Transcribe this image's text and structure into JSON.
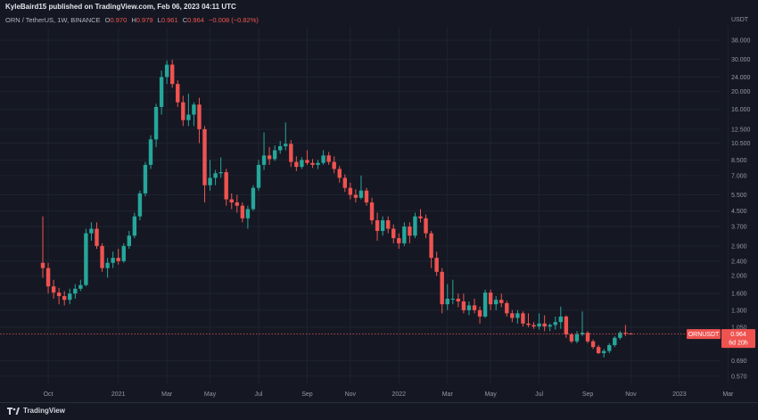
{
  "header": {
    "published_line": "KyleBaird15 published on TradingView.com, Feb 06, 2023 04:11 UTC"
  },
  "legend": {
    "symbol": "ORN / TetherUS, 1W, BINANCE",
    "o_key": "O",
    "o_val": "0.970",
    "h_key": "H",
    "h_val": "0.979",
    "l_key": "L",
    "l_val": "0.961",
    "c_key": "C",
    "c_val": "0.964",
    "change": "−0.008 (−0.82%)"
  },
  "footer": {
    "brand": "TradingView"
  },
  "colors": {
    "up": "#26a69a",
    "down": "#ef5350",
    "bg": "#151823",
    "grid": "#1f2330",
    "axis_text": "#9598a1"
  },
  "chart_data": {
    "type": "candlestick",
    "y_axis_unit": "USDT",
    "y_scale": "log",
    "y_ticks": [
      38.0,
      30.0,
      24.0,
      20.0,
      16.0,
      12.5,
      10.5,
      8.5,
      7.0,
      5.5,
      4.5,
      3.7,
      2.9,
      2.4,
      2.0,
      1.6,
      1.3,
      1.05,
      0.69,
      0.57
    ],
    "y_tick_labels": [
      "38.000",
      "30.000",
      "24.000",
      "20.000",
      "16.000",
      "12.500",
      "10.500",
      "8.500",
      "7.000",
      "5.500",
      "4.500",
      "3.700",
      "2.900",
      "2.400",
      "2.000",
      "1.600",
      "1.300",
      "1.050",
      "0.690",
      "0.570"
    ],
    "ylim": [
      0.52,
      45.0
    ],
    "x_ticks": [
      {
        "index": 1,
        "label": "Oct"
      },
      {
        "index": 14,
        "label": "2021"
      },
      {
        "index": 23,
        "label": "Mar"
      },
      {
        "index": 31,
        "label": "May"
      },
      {
        "index": 40,
        "label": "Jul"
      },
      {
        "index": 49,
        "label": "Sep"
      },
      {
        "index": 57,
        "label": "Nov"
      },
      {
        "index": 66,
        "label": "2022"
      },
      {
        "index": 75,
        "label": "Mar"
      },
      {
        "index": 83,
        "label": "May"
      },
      {
        "index": 92,
        "label": "Jul"
      },
      {
        "index": 101,
        "label": "Sep"
      },
      {
        "index": 109,
        "label": "Nov"
      },
      {
        "index": 118,
        "label": "2023"
      },
      {
        "index": 127,
        "label": "Mar"
      }
    ],
    "last_price": {
      "label": "ORNUSDT",
      "value": "0.964",
      "countdown": "6d 20h",
      "price": 0.964
    },
    "candles": [
      {
        "o": 2.35,
        "h": 4.2,
        "l": 1.95,
        "c": 2.2
      },
      {
        "o": 2.2,
        "h": 2.35,
        "l": 1.6,
        "c": 1.75
      },
      {
        "o": 1.75,
        "h": 1.9,
        "l": 1.5,
        "c": 1.62
      },
      {
        "o": 1.62,
        "h": 1.72,
        "l": 1.4,
        "c": 1.55
      },
      {
        "o": 1.55,
        "h": 1.65,
        "l": 1.38,
        "c": 1.48
      },
      {
        "o": 1.48,
        "h": 1.7,
        "l": 1.4,
        "c": 1.6
      },
      {
        "o": 1.6,
        "h": 1.8,
        "l": 1.5,
        "c": 1.7
      },
      {
        "o": 1.7,
        "h": 1.9,
        "l": 1.65,
        "c": 1.78
      },
      {
        "o": 1.78,
        "h": 3.6,
        "l": 1.75,
        "c": 3.4
      },
      {
        "o": 3.4,
        "h": 3.9,
        "l": 3.1,
        "c": 3.6
      },
      {
        "o": 3.6,
        "h": 3.9,
        "l": 2.8,
        "c": 2.9
      },
      {
        "o": 2.9,
        "h": 3.0,
        "l": 2.1,
        "c": 2.2
      },
      {
        "o": 2.2,
        "h": 2.5,
        "l": 1.95,
        "c": 2.35
      },
      {
        "o": 2.35,
        "h": 2.7,
        "l": 2.2,
        "c": 2.5
      },
      {
        "o": 2.5,
        "h": 2.8,
        "l": 2.3,
        "c": 2.4
      },
      {
        "o": 2.4,
        "h": 3.0,
        "l": 2.35,
        "c": 2.9
      },
      {
        "o": 2.9,
        "h": 3.5,
        "l": 2.8,
        "c": 3.3
      },
      {
        "o": 3.3,
        "h": 4.4,
        "l": 3.2,
        "c": 4.2
      },
      {
        "o": 4.2,
        "h": 5.8,
        "l": 4.0,
        "c": 5.6
      },
      {
        "o": 5.6,
        "h": 8.3,
        "l": 5.4,
        "c": 8.0
      },
      {
        "o": 8.0,
        "h": 11.6,
        "l": 7.6,
        "c": 11.0
      },
      {
        "o": 11.0,
        "h": 17.2,
        "l": 10.0,
        "c": 16.5
      },
      {
        "o": 16.5,
        "h": 26.0,
        "l": 15.0,
        "c": 24.0
      },
      {
        "o": 24.0,
        "h": 29.5,
        "l": 22.0,
        "c": 28.0
      },
      {
        "o": 28.0,
        "h": 29.8,
        "l": 21.0,
        "c": 22.0
      },
      {
        "o": 22.0,
        "h": 23.0,
        "l": 16.5,
        "c": 17.5
      },
      {
        "o": 17.5,
        "h": 19.0,
        "l": 13.0,
        "c": 14.0
      },
      {
        "o": 14.0,
        "h": 19.5,
        "l": 13.0,
        "c": 15.0
      },
      {
        "o": 15.0,
        "h": 17.5,
        "l": 13.0,
        "c": 17.0
      },
      {
        "o": 17.0,
        "h": 18.5,
        "l": 10.5,
        "c": 12.5
      },
      {
        "o": 12.5,
        "h": 13.0,
        "l": 5.0,
        "c": 6.2
      },
      {
        "o": 6.2,
        "h": 8.5,
        "l": 5.8,
        "c": 6.8
      },
      {
        "o": 6.8,
        "h": 7.5,
        "l": 6.2,
        "c": 7.2
      },
      {
        "o": 7.2,
        "h": 8.8,
        "l": 6.8,
        "c": 7.3
      },
      {
        "o": 7.3,
        "h": 7.6,
        "l": 4.8,
        "c": 5.2
      },
      {
        "o": 5.2,
        "h": 5.6,
        "l": 4.6,
        "c": 5.0
      },
      {
        "o": 5.0,
        "h": 5.5,
        "l": 4.4,
        "c": 4.8
      },
      {
        "o": 4.8,
        "h": 5.0,
        "l": 3.9,
        "c": 4.1
      },
      {
        "o": 4.1,
        "h": 4.8,
        "l": 3.6,
        "c": 4.6
      },
      {
        "o": 4.6,
        "h": 6.2,
        "l": 4.5,
        "c": 6.0
      },
      {
        "o": 6.0,
        "h": 8.5,
        "l": 5.8,
        "c": 8.0
      },
      {
        "o": 8.0,
        "h": 12.0,
        "l": 7.5,
        "c": 9.0
      },
      {
        "o": 9.0,
        "h": 10.0,
        "l": 8.0,
        "c": 8.6
      },
      {
        "o": 8.6,
        "h": 10.2,
        "l": 8.4,
        "c": 9.6
      },
      {
        "o": 9.6,
        "h": 10.8,
        "l": 9.2,
        "c": 10.1
      },
      {
        "o": 10.1,
        "h": 13.6,
        "l": 9.6,
        "c": 10.4
      },
      {
        "o": 10.4,
        "h": 10.9,
        "l": 7.8,
        "c": 8.3
      },
      {
        "o": 8.3,
        "h": 8.9,
        "l": 7.4,
        "c": 7.8
      },
      {
        "o": 7.8,
        "h": 8.8,
        "l": 7.6,
        "c": 8.5
      },
      {
        "o": 8.5,
        "h": 9.6,
        "l": 8.0,
        "c": 8.2
      },
      {
        "o": 8.2,
        "h": 8.6,
        "l": 7.7,
        "c": 8.0
      },
      {
        "o": 8.0,
        "h": 8.5,
        "l": 7.6,
        "c": 8.2
      },
      {
        "o": 8.2,
        "h": 9.6,
        "l": 8.0,
        "c": 9.0
      },
      {
        "o": 9.0,
        "h": 9.4,
        "l": 8.0,
        "c": 8.3
      },
      {
        "o": 8.3,
        "h": 8.9,
        "l": 7.2,
        "c": 7.6
      },
      {
        "o": 7.6,
        "h": 7.9,
        "l": 6.4,
        "c": 6.8
      },
      {
        "o": 6.8,
        "h": 7.1,
        "l": 5.7,
        "c": 6.0
      },
      {
        "o": 6.0,
        "h": 6.4,
        "l": 5.2,
        "c": 5.5
      },
      {
        "o": 5.5,
        "h": 5.9,
        "l": 5.0,
        "c": 5.3
      },
      {
        "o": 5.3,
        "h": 7.0,
        "l": 5.2,
        "c": 5.8
      },
      {
        "o": 5.8,
        "h": 6.0,
        "l": 4.8,
        "c": 5.0
      },
      {
        "o": 5.0,
        "h": 5.3,
        "l": 3.8,
        "c": 4.0
      },
      {
        "o": 4.0,
        "h": 4.4,
        "l": 3.1,
        "c": 3.5
      },
      {
        "o": 3.5,
        "h": 4.2,
        "l": 3.3,
        "c": 4.0
      },
      {
        "o": 4.0,
        "h": 4.2,
        "l": 3.4,
        "c": 3.6
      },
      {
        "o": 3.6,
        "h": 3.8,
        "l": 3.0,
        "c": 3.2
      },
      {
        "o": 3.2,
        "h": 3.4,
        "l": 2.8,
        "c": 3.0
      },
      {
        "o": 3.0,
        "h": 3.9,
        "l": 2.9,
        "c": 3.7
      },
      {
        "o": 3.7,
        "h": 3.9,
        "l": 3.0,
        "c": 3.3
      },
      {
        "o": 3.3,
        "h": 4.4,
        "l": 3.2,
        "c": 4.2
      },
      {
        "o": 4.2,
        "h": 4.6,
        "l": 3.9,
        "c": 4.1
      },
      {
        "o": 4.1,
        "h": 4.3,
        "l": 3.2,
        "c": 3.4
      },
      {
        "o": 3.4,
        "h": 3.5,
        "l": 2.2,
        "c": 2.5
      },
      {
        "o": 2.5,
        "h": 2.7,
        "l": 2.0,
        "c": 2.1
      },
      {
        "o": 2.1,
        "h": 2.2,
        "l": 1.25,
        "c": 1.4
      },
      {
        "o": 1.4,
        "h": 1.8,
        "l": 1.3,
        "c": 1.5
      },
      {
        "o": 1.5,
        "h": 1.9,
        "l": 1.4,
        "c": 1.5
      },
      {
        "o": 1.5,
        "h": 1.6,
        "l": 1.35,
        "c": 1.45
      },
      {
        "o": 1.45,
        "h": 1.6,
        "l": 1.25,
        "c": 1.3
      },
      {
        "o": 1.3,
        "h": 1.45,
        "l": 1.22,
        "c": 1.38
      },
      {
        "o": 1.38,
        "h": 1.5,
        "l": 1.25,
        "c": 1.3
      },
      {
        "o": 1.3,
        "h": 1.36,
        "l": 1.1,
        "c": 1.2
      },
      {
        "o": 1.2,
        "h": 1.68,
        "l": 1.18,
        "c": 1.62
      },
      {
        "o": 1.62,
        "h": 1.68,
        "l": 1.3,
        "c": 1.4
      },
      {
        "o": 1.4,
        "h": 1.55,
        "l": 1.3,
        "c": 1.48
      },
      {
        "o": 1.48,
        "h": 1.6,
        "l": 1.35,
        "c": 1.42
      },
      {
        "o": 1.42,
        "h": 1.46,
        "l": 1.2,
        "c": 1.25
      },
      {
        "o": 1.25,
        "h": 1.3,
        "l": 1.12,
        "c": 1.18
      },
      {
        "o": 1.18,
        "h": 1.3,
        "l": 1.1,
        "c": 1.25
      },
      {
        "o": 1.25,
        "h": 1.28,
        "l": 1.06,
        "c": 1.1
      },
      {
        "o": 1.1,
        "h": 1.25,
        "l": 1.05,
        "c": 1.08
      },
      {
        "o": 1.08,
        "h": 1.12,
        "l": 1.03,
        "c": 1.06
      },
      {
        "o": 1.06,
        "h": 1.25,
        "l": 1.02,
        "c": 1.1
      },
      {
        "o": 1.1,
        "h": 1.22,
        "l": 1.0,
        "c": 1.06
      },
      {
        "o": 1.06,
        "h": 1.1,
        "l": 1.0,
        "c": 1.08
      },
      {
        "o": 1.08,
        "h": 1.2,
        "l": 1.02,
        "c": 1.12
      },
      {
        "o": 1.12,
        "h": 1.36,
        "l": 1.03,
        "c": 1.2
      },
      {
        "o": 1.2,
        "h": 1.22,
        "l": 0.92,
        "c": 0.96
      },
      {
        "o": 0.96,
        "h": 0.98,
        "l": 0.86,
        "c": 0.88
      },
      {
        "o": 0.88,
        "h": 1.0,
        "l": 0.86,
        "c": 0.96
      },
      {
        "o": 0.96,
        "h": 1.28,
        "l": 0.94,
        "c": 0.98
      },
      {
        "o": 0.98,
        "h": 1.0,
        "l": 0.86,
        "c": 0.88
      },
      {
        "o": 0.88,
        "h": 0.9,
        "l": 0.8,
        "c": 0.82
      },
      {
        "o": 0.82,
        "h": 0.84,
        "l": 0.75,
        "c": 0.76
      },
      {
        "o": 0.76,
        "h": 0.8,
        "l": 0.72,
        "c": 0.78
      },
      {
        "o": 0.78,
        "h": 0.86,
        "l": 0.76,
        "c": 0.84
      },
      {
        "o": 0.84,
        "h": 0.94,
        "l": 0.82,
        "c": 0.92
      },
      {
        "o": 0.92,
        "h": 1.0,
        "l": 0.9,
        "c": 0.98
      },
      {
        "o": 0.98,
        "h": 1.08,
        "l": 0.94,
        "c": 0.97
      },
      {
        "o": 0.97,
        "h": 0.979,
        "l": 0.961,
        "c": 0.964
      }
    ]
  }
}
